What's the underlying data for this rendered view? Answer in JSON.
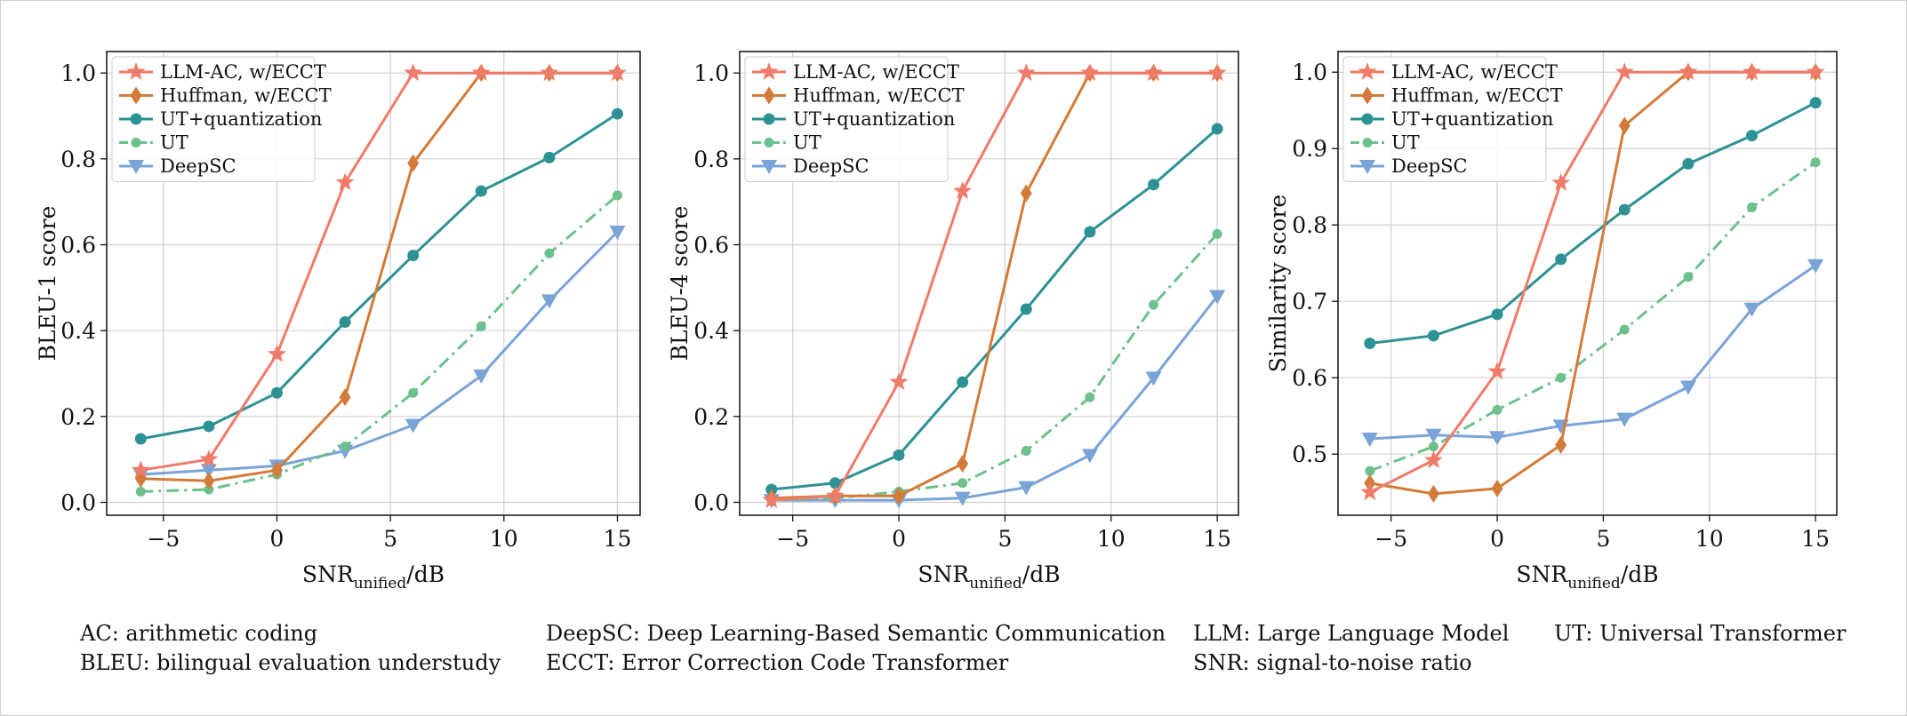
{
  "chart_data": [
    {
      "type": "line",
      "title": "",
      "xlabel": "SNR",
      "xlabel_sub": "unified",
      "xlabel_suffix": "/dB",
      "ylabel": "BLEU-1 score",
      "xlim": [
        -7.5,
        16
      ],
      "ylim": [
        -0.03,
        1.05
      ],
      "xticks": [
        -5,
        0,
        5,
        10,
        15
      ],
      "xtick_labels": [
        "−5",
        "0",
        "5",
        "10",
        "15"
      ],
      "yticks": [
        0.0,
        0.2,
        0.4,
        0.6,
        0.8,
        1.0
      ],
      "ytick_labels": [
        "0.0",
        "0.2",
        "0.4",
        "0.6",
        "0.8",
        "1.0"
      ],
      "grid": true,
      "legend_position": "top-left",
      "x": [
        -6,
        -3,
        0,
        3,
        6,
        9,
        12,
        15
      ],
      "series": [
        {
          "name": "LLM-AC, w/ECCT",
          "color": "#ef7b6a",
          "marker": "star",
          "dash": "solid",
          "values": [
            0.075,
            0.1,
            0.345,
            0.745,
            1.0,
            1.0,
            1.0,
            1.0
          ]
        },
        {
          "name": "Huffman, w/ECCT",
          "color": "#d37b38",
          "marker": "diamond",
          "dash": "solid",
          "values": [
            0.055,
            0.05,
            0.075,
            0.245,
            0.79,
            1.0,
            1.0,
            1.0
          ]
        },
        {
          "name": "UT+quantization",
          "color": "#2e9193",
          "marker": "circle",
          "dash": "solid",
          "values": [
            0.148,
            0.177,
            0.255,
            0.42,
            0.575,
            0.725,
            0.803,
            0.905
          ]
        },
        {
          "name": "UT",
          "color": "#6cc08b",
          "marker": "circle-small",
          "dash": "dashdot",
          "values": [
            0.025,
            0.03,
            0.065,
            0.13,
            0.255,
            0.41,
            0.58,
            0.715
          ]
        },
        {
          "name": "DeepSC",
          "color": "#7aa3d7",
          "marker": "triangle-down",
          "dash": "solid",
          "values": [
            0.065,
            0.075,
            0.085,
            0.12,
            0.18,
            0.295,
            0.47,
            0.63
          ]
        }
      ]
    },
    {
      "type": "line",
      "title": "",
      "xlabel": "SNR",
      "xlabel_sub": "unified",
      "xlabel_suffix": "/dB",
      "ylabel": "BLEU-4 score",
      "xlim": [
        -7.5,
        16
      ],
      "ylim": [
        -0.03,
        1.05
      ],
      "xticks": [
        -5,
        0,
        5,
        10,
        15
      ],
      "xtick_labels": [
        "−5",
        "0",
        "5",
        "10",
        "15"
      ],
      "yticks": [
        0.0,
        0.2,
        0.4,
        0.6,
        0.8,
        1.0
      ],
      "ytick_labels": [
        "0.0",
        "0.2",
        "0.4",
        "0.6",
        "0.8",
        "1.0"
      ],
      "grid": true,
      "legend_position": "top-left",
      "x": [
        -6,
        -3,
        0,
        3,
        6,
        9,
        12,
        15
      ],
      "series": [
        {
          "name": "LLM-AC, w/ECCT",
          "color": "#ef7b6a",
          "marker": "star",
          "dash": "solid",
          "values": [
            0.005,
            0.015,
            0.28,
            0.725,
            1.0,
            1.0,
            1.0,
            1.0
          ]
        },
        {
          "name": "Huffman, w/ECCT",
          "color": "#d37b38",
          "marker": "diamond",
          "dash": "solid",
          "values": [
            0.01,
            0.015,
            0.015,
            0.09,
            0.72,
            1.0,
            1.0,
            1.0
          ]
        },
        {
          "name": "UT+quantization",
          "color": "#2e9193",
          "marker": "circle",
          "dash": "solid",
          "values": [
            0.03,
            0.045,
            0.11,
            0.28,
            0.45,
            0.63,
            0.74,
            0.87
          ]
        },
        {
          "name": "UT",
          "color": "#6cc08b",
          "marker": "circle-small",
          "dash": "dashdot",
          "values": [
            0.005,
            0.01,
            0.025,
            0.045,
            0.12,
            0.245,
            0.46,
            0.625
          ]
        },
        {
          "name": "DeepSC",
          "color": "#7aa3d7",
          "marker": "triangle-down",
          "dash": "solid",
          "values": [
            0.005,
            0.005,
            0.005,
            0.01,
            0.035,
            0.11,
            0.29,
            0.48
          ]
        }
      ]
    },
    {
      "type": "line",
      "title": "",
      "xlabel": "SNR",
      "xlabel_sub": "unified",
      "xlabel_suffix": "/dB",
      "ylabel": "Similarity score",
      "xlim": [
        -7.5,
        16
      ],
      "ylim": [
        0.42,
        1.027
      ],
      "xticks": [
        -5,
        0,
        5,
        10,
        15
      ],
      "xtick_labels": [
        "−5",
        "0",
        "5",
        "10",
        "15"
      ],
      "yticks": [
        0.5,
        0.6,
        0.7,
        0.8,
        0.9,
        1.0
      ],
      "ytick_labels": [
        "0.5",
        "0.6",
        "0.7",
        "0.8",
        "0.9",
        "1.0"
      ],
      "grid": true,
      "legend_position": "top-left",
      "x": [
        -6,
        -3,
        0,
        3,
        6,
        9,
        12,
        15
      ],
      "series": [
        {
          "name": "LLM-AC, w/ECCT",
          "color": "#ef7b6a",
          "marker": "star",
          "dash": "solid",
          "values": [
            0.45,
            0.492,
            0.608,
            0.855,
            1.0,
            1.0,
            1.0,
            1.0
          ]
        },
        {
          "name": "Huffman, w/ECCT",
          "color": "#d37b38",
          "marker": "diamond",
          "dash": "solid",
          "values": [
            0.462,
            0.448,
            0.455,
            0.512,
            0.93,
            1.0,
            1.0,
            1.0
          ]
        },
        {
          "name": "UT+quantization",
          "color": "#2e9193",
          "marker": "circle",
          "dash": "solid",
          "values": [
            0.645,
            0.655,
            0.683,
            0.755,
            0.82,
            0.88,
            0.917,
            0.96
          ]
        },
        {
          "name": "UT",
          "color": "#6cc08b",
          "marker": "circle-small",
          "dash": "dashdot",
          "values": [
            0.478,
            0.51,
            0.558,
            0.6,
            0.663,
            0.732,
            0.823,
            0.882
          ]
        },
        {
          "name": "DeepSC",
          "color": "#7aa3d7",
          "marker": "triangle-down",
          "dash": "solid",
          "values": [
            0.52,
            0.525,
            0.522,
            0.537,
            0.546,
            0.588,
            0.69,
            0.747
          ]
        }
      ]
    }
  ],
  "glossary": [
    "AC: arithmetic coding",
    "BLEU: bilingual evaluation understudy",
    "DeepSC: Deep Learning-Based Semantic Communication",
    "ECCT: Error Correction Code Transformer",
    "LLM: Large Language Model",
    "SNR: signal-to-noise ratio",
    "UT: Universal Transformer"
  ]
}
